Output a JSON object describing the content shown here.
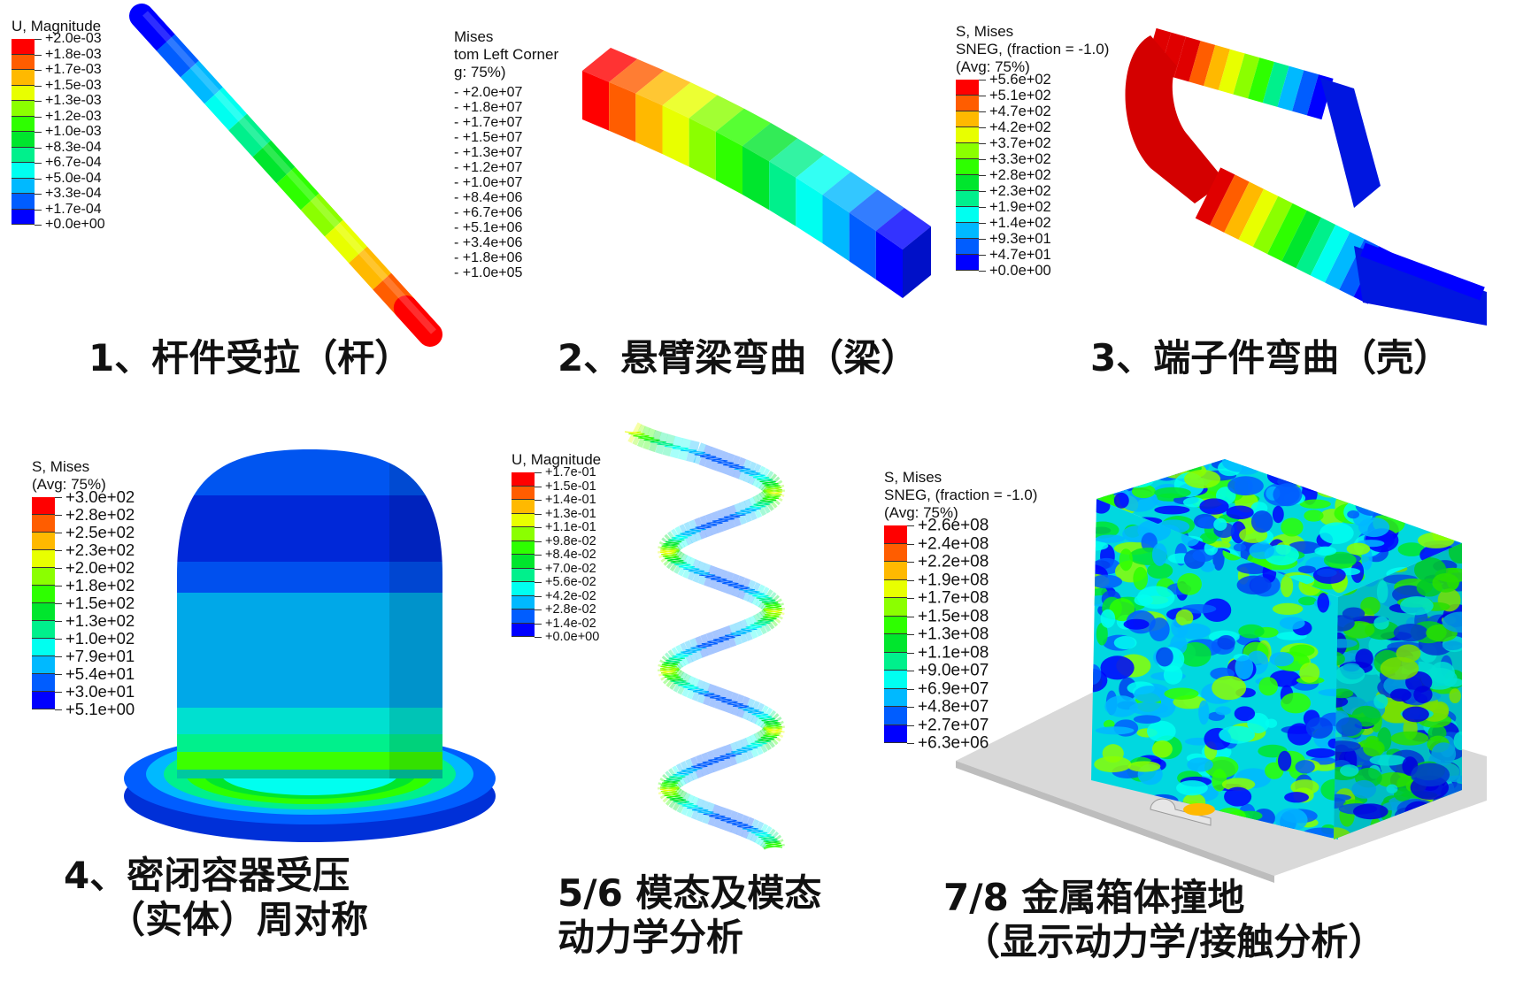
{
  "colormap": [
    "#ff0000",
    "#ff5d00",
    "#ffb900",
    "#e8ff00",
    "#8bff00",
    "#2eff00",
    "#00e62d",
    "#00f08c",
    "#00fff0",
    "#00b9ff",
    "#005dff",
    "#0000ff"
  ],
  "panels": [
    {
      "id": "rod",
      "caption": [
        "1、杆件受拉（杆）"
      ],
      "legend": {
        "title": [
          "U, Magnitude"
        ],
        "values": [
          "+2.0e-03",
          "+1.8e-03",
          "+1.7e-03",
          "+1.5e-03",
          "+1.3e-03",
          "+1.2e-03",
          "+1.0e-03",
          "+8.3e-04",
          "+6.7e-04",
          "+5.0e-04",
          "+3.3e-04",
          "+1.7e-04",
          "+0.0e+00"
        ]
      }
    },
    {
      "id": "beam",
      "caption": [
        "2、悬臂梁弯曲（梁）"
      ],
      "legend": {
        "title": [
          "Mises",
          "tom Left Corner",
          "g: 75%)"
        ],
        "values": [
          "- +2.0e+07",
          "- +1.8e+07",
          "- +1.7e+07",
          "- +1.5e+07",
          "- +1.3e+07",
          "- +1.2e+07",
          "- +1.0e+07",
          "- +8.4e+06",
          "- +6.7e+06",
          "- +5.1e+06",
          "- +3.4e+06",
          "- +1.8e+06",
          "- +1.0e+05"
        ]
      }
    },
    {
      "id": "shell",
      "caption": [
        "3、端子件弯曲（壳）"
      ],
      "legend": {
        "title": [
          "S, Mises",
          "SNEG, (fraction = -1.0)",
          "(Avg: 75%)"
        ],
        "values": [
          "+5.6e+02",
          "+5.1e+02",
          "+4.7e+02",
          "+4.2e+02",
          "+3.7e+02",
          "+3.3e+02",
          "+2.8e+02",
          "+2.3e+02",
          "+1.9e+02",
          "+1.4e+02",
          "+9.3e+01",
          "+4.7e+01",
          "+0.0e+00"
        ]
      }
    },
    {
      "id": "vessel",
      "caption": [
        "4、密闭容器受压",
        "（实体）周对称"
      ],
      "legend": {
        "title": [
          "S, Mises",
          "(Avg: 75%)"
        ],
        "values": [
          "+3.0e+02",
          "+2.8e+02",
          "+2.5e+02",
          "+2.3e+02",
          "+2.0e+02",
          "+1.8e+02",
          "+1.5e+02",
          "+1.3e+02",
          "+1.0e+02",
          "+7.9e+01",
          "+5.4e+01",
          "+3.0e+01",
          "+5.1e+00"
        ]
      }
    },
    {
      "id": "spring",
      "caption": [
        "5/6 模态及模态",
        "动力学分析"
      ],
      "legend": {
        "title": [
          "U, Magnitude"
        ],
        "values": [
          "+1.7e-01",
          "+1.5e-01",
          "+1.4e-01",
          "+1.3e-01",
          "+1.1e-01",
          "+9.8e-02",
          "+8.4e-02",
          "+7.0e-02",
          "+5.6e-02",
          "+4.2e-02",
          "+2.8e-02",
          "+1.4e-02",
          "+0.0e+00"
        ]
      }
    },
    {
      "id": "box",
      "caption": [
        "7/8 金属箱体撞地",
        "（显示动力学/接触分析）"
      ],
      "legend": {
        "title": [
          "S, Mises",
          "SNEG, (fraction = -1.0)",
          "(Avg: 75%)"
        ],
        "values": [
          "+2.6e+08",
          "+2.4e+08",
          "+2.2e+08",
          "+1.9e+08",
          "+1.7e+08",
          "+1.5e+08",
          "+1.3e+08",
          "+1.1e+08",
          "+9.0e+07",
          "+6.9e+07",
          "+4.8e+07",
          "+2.7e+07",
          "+6.3e+06"
        ]
      }
    }
  ]
}
